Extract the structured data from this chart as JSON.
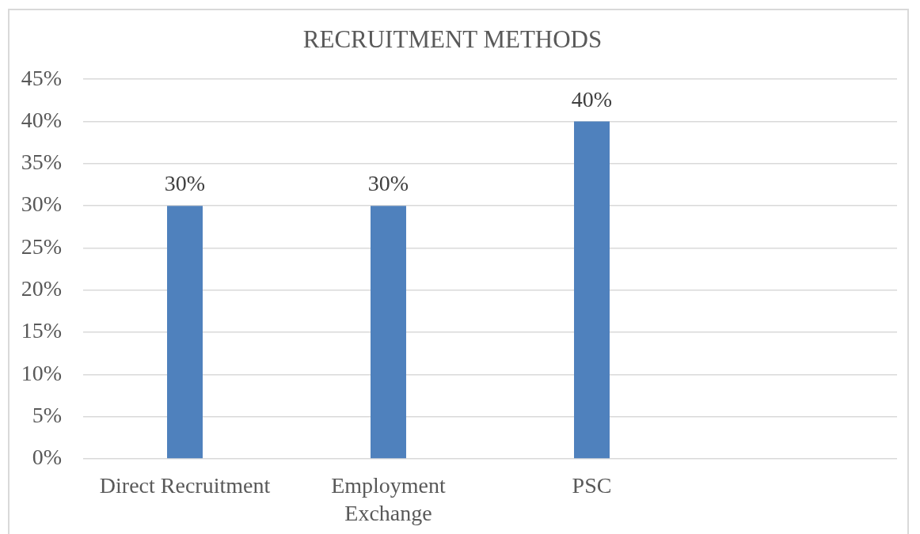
{
  "chart_data": {
    "type": "bar",
    "title": "RECRUITMENT METHODS",
    "categories": [
      "Direct Recruitment",
      "Employment\nExchange",
      "PSC",
      null
    ],
    "values": [
      30,
      30,
      40,
      null
    ],
    "color": "#4f81bd",
    "value_labels": [
      "30%",
      "30%",
      "40%",
      null
    ],
    "ylim": [
      0,
      45
    ],
    "yticks": [
      {
        "value": 0,
        "label": "0%"
      },
      {
        "value": 5,
        "label": "5%"
      },
      {
        "value": 10,
        "label": "10%"
      },
      {
        "value": 15,
        "label": "15%"
      },
      {
        "value": 20,
        "label": "20%"
      },
      {
        "value": 25,
        "label": "25%"
      },
      {
        "value": 30,
        "label": "30%"
      },
      {
        "value": 35,
        "label": "35%"
      },
      {
        "value": 40,
        "label": "40%"
      },
      {
        "value": 45,
        "label": "45%"
      }
    ],
    "grid": "y"
  }
}
